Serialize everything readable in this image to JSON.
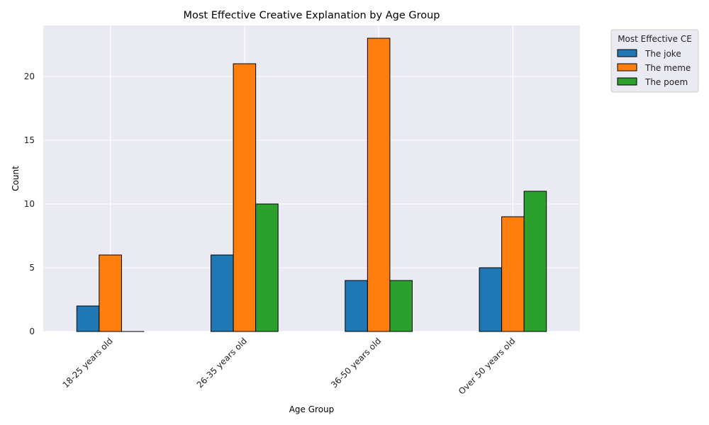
{
  "chart_data": {
    "type": "bar",
    "title": "Most Effective Creative Explanation by Age Group",
    "xlabel": "Age Group",
    "ylabel": "Count",
    "categories": [
      "18-25 years old",
      "26-35 years old",
      "36-50 years old",
      "Over 50 years old"
    ],
    "series": [
      {
        "name": "The joke",
        "color": "#1f77b4",
        "values": [
          2,
          6,
          4,
          5
        ]
      },
      {
        "name": "The meme",
        "color": "#ff7f0e",
        "values": [
          6,
          21,
          23,
          9
        ]
      },
      {
        "name": "The poem",
        "color": "#2ca02c",
        "values": [
          0,
          10,
          4,
          11
        ]
      }
    ],
    "ylim": [
      0,
      24
    ],
    "yticks": [
      0,
      5,
      10,
      15,
      20
    ],
    "grid": true,
    "background": "#eaeaf2",
    "legend": {
      "title": "Most Effective CE",
      "placement": "outside-upper-right"
    }
  }
}
